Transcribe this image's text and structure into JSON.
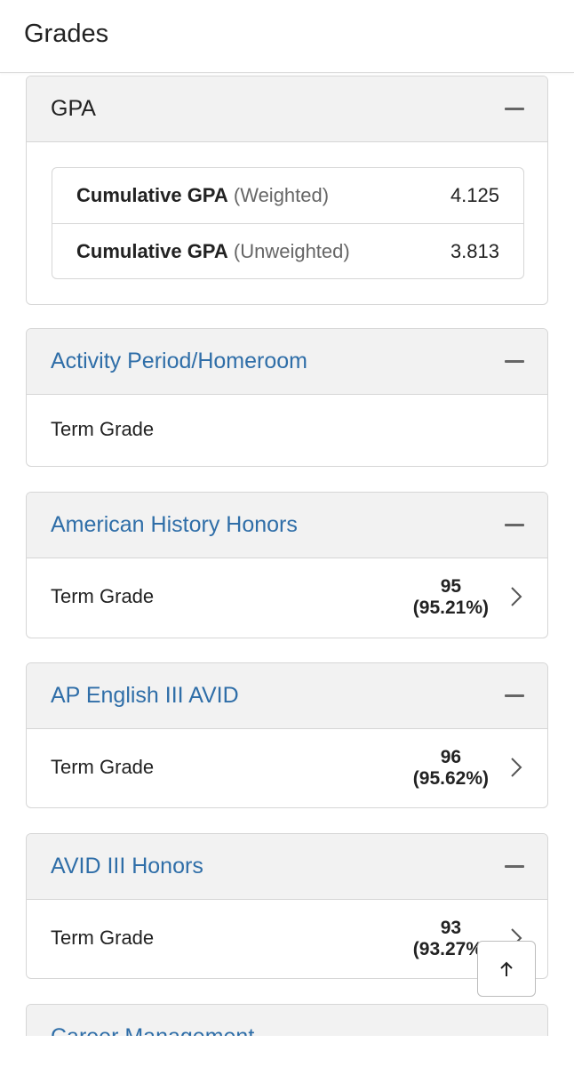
{
  "header": {
    "title": "Grades"
  },
  "gpa_section": {
    "title": "GPA",
    "rows": [
      {
        "label": "Cumulative GPA",
        "qualifier": "(Weighted)",
        "value": "4.125"
      },
      {
        "label": "Cumulative GPA",
        "qualifier": "(Unweighted)",
        "value": "3.813"
      }
    ]
  },
  "courses": [
    {
      "name": "Activity Period/Homeroom",
      "row_label": "Term Grade",
      "grade": "",
      "percent": ""
    },
    {
      "name": "American History Honors",
      "row_label": "Term Grade",
      "grade": "95",
      "percent": "(95.21%)"
    },
    {
      "name": "AP English III AVID",
      "row_label": "Term Grade",
      "grade": "96",
      "percent": "(95.62%)"
    },
    {
      "name": "AVID III Honors",
      "row_label": "Term Grade",
      "grade": "93",
      "percent": "(93.27%)"
    },
    {
      "name": "Career Management"
    }
  ],
  "icons": {
    "collapse": "minus-icon",
    "expand_row": "chevron-right-icon",
    "scroll_top": "arrow-up-icon"
  },
  "colors": {
    "link": "#2f6ea8",
    "header_bg": "#f2f2f2",
    "border": "#d6d6d6"
  }
}
